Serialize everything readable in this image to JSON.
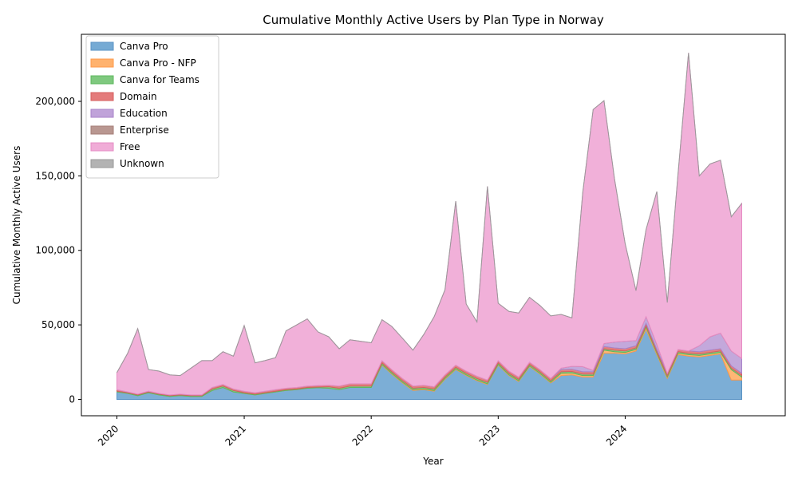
{
  "chart_data": {
    "type": "area",
    "stacked": true,
    "title": "Cumulative Monthly Active Users by Plan Type in Norway",
    "xlabel": "Year",
    "ylabel": "Cumulative Monthly Active Users",
    "x_ticks": [
      "2020",
      "2021",
      "2022",
      "2023",
      "2024"
    ],
    "y_ticks": [
      "0",
      "50,000",
      "100,000",
      "150,000",
      "200,000"
    ],
    "y_tick_values": [
      0,
      50000,
      100000,
      150000,
      200000
    ],
    "ylim": [
      -11000,
      245000
    ],
    "x_range": [
      "2019-09-21",
      "2025-04-05"
    ],
    "legend_position": "top-left",
    "grid": false,
    "x": [
      "2020-01",
      "2020-02",
      "2020-03",
      "2020-04",
      "2020-05",
      "2020-06",
      "2020-07",
      "2020-08",
      "2020-09",
      "2020-10",
      "2020-11",
      "2020-12",
      "2021-01",
      "2021-02",
      "2021-03",
      "2021-04",
      "2021-05",
      "2021-06",
      "2021-07",
      "2021-08",
      "2021-09",
      "2021-10",
      "2021-11",
      "2021-12",
      "2022-01",
      "2022-02",
      "2022-03",
      "2022-04",
      "2022-05",
      "2022-06",
      "2022-07",
      "2022-08",
      "2022-09",
      "2022-10",
      "2022-11",
      "2022-12",
      "2023-01",
      "2023-02",
      "2023-03",
      "2023-04",
      "2023-05",
      "2023-06",
      "2023-07",
      "2023-08",
      "2023-09",
      "2023-10",
      "2023-11",
      "2023-12",
      "2024-01",
      "2024-02",
      "2024-03",
      "2024-04",
      "2024-05",
      "2024-06",
      "2024-07",
      "2024-08",
      "2024-09",
      "2024-10",
      "2024-11",
      "2024-12"
    ],
    "series": [
      {
        "name": "Canva Pro",
        "color": "#75aad4",
        "edge": "#5a93c4",
        "values": [
          5000,
          4000,
          2500,
          4500,
          3000,
          2000,
          2500,
          2000,
          2000,
          6000,
          8000,
          5000,
          4000,
          3000,
          4000,
          5000,
          6000,
          6500,
          7500,
          7800,
          7500,
          6500,
          8000,
          8000,
          8000,
          23000,
          17000,
          11000,
          6000,
          6500,
          5500,
          13500,
          20000,
          16000,
          12500,
          10000,
          23000,
          16000,
          12000,
          22000,
          17000,
          11000,
          16000,
          16500,
          15000,
          15000,
          31000,
          31000,
          30500,
          32500,
          47000,
          30000,
          14000,
          30000,
          29000,
          28500,
          29500,
          30500,
          13000,
          13000
        ]
      },
      {
        "name": "Canva Pro - NFP",
        "color": "#ffb26e",
        "edge": "#ff9a4a",
        "values": [
          0,
          0,
          0,
          0,
          0,
          0,
          0,
          0,
          0,
          0,
          0,
          0,
          0,
          0,
          0,
          0,
          0,
          0,
          0,
          0,
          0,
          0,
          0,
          0,
          0,
          500,
          500,
          500,
          500,
          500,
          500,
          500,
          500,
          500,
          500,
          500,
          500,
          500,
          500,
          500,
          500,
          500,
          1500,
          1200,
          1000,
          1000,
          2000,
          1000,
          1000,
          1000,
          1500,
          1000,
          1000,
          1000,
          1000,
          1000,
          1000,
          1000,
          7000,
          2000
        ]
      },
      {
        "name": "Canva for Teams",
        "color": "#7fc97f",
        "edge": "#5cb85c",
        "values": [
          500,
          500,
          500,
          500,
          500,
          500,
          500,
          500,
          500,
          1000,
          1000,
          1000,
          500,
          500,
          500,
          500,
          500,
          500,
          500,
          500,
          1000,
          1000,
          1000,
          1000,
          1000,
          1000,
          1000,
          1000,
          1000,
          1000,
          1000,
          1000,
          1000,
          1000,
          1000,
          1000,
          1000,
          1000,
          1000,
          1000,
          1000,
          1000,
          1000,
          1000,
          1000,
          1000,
          1000,
          1000,
          1000,
          1000,
          1000,
          1000,
          1000,
          1000,
          1000,
          1000,
          1000,
          1000,
          1000,
          1000
        ]
      },
      {
        "name": "Domain",
        "color": "#e47b7b",
        "edge": "#d65f5f",
        "values": [
          1000,
          500,
          500,
          500,
          500,
          500,
          500,
          500,
          500,
          1000,
          1000,
          1000,
          1000,
          1000,
          1000,
          1000,
          1000,
          1000,
          1000,
          1000,
          1000,
          1500,
          1500,
          1500,
          1500,
          1500,
          1500,
          1500,
          1500,
          1500,
          1500,
          1500,
          1500,
          1500,
          1500,
          1500,
          1500,
          1500,
          1500,
          1500,
          1500,
          1500,
          1500,
          1500,
          1500,
          1500,
          1500,
          1500,
          1500,
          1500,
          1500,
          1500,
          1500,
          1500,
          1500,
          1500,
          1500,
          1500,
          1500,
          1500
        ]
      },
      {
        "name": "Education",
        "color": "#c0a3d9",
        "edge": "#a983c9",
        "values": [
          0,
          0,
          0,
          0,
          0,
          0,
          0,
          0,
          0,
          0,
          0,
          0,
          0,
          0,
          0,
          0,
          0,
          0,
          0,
          0,
          0,
          0,
          0,
          0,
          0,
          0,
          0,
          0,
          0,
          0,
          0,
          0,
          0,
          0,
          0,
          0,
          0,
          0,
          0,
          0,
          0,
          0,
          1000,
          2000,
          3500,
          1000,
          2000,
          4000,
          5000,
          3500,
          4500,
          3500,
          0,
          0,
          0,
          4000,
          9000,
          10500,
          10000,
          10000
        ]
      },
      {
        "name": "Enterprise",
        "color": "#b99791",
        "edge": "#a57d77",
        "values": [
          0,
          0,
          0,
          0,
          0,
          0,
          0,
          0,
          0,
          0,
          0,
          0,
          0,
          0,
          0,
          0,
          0,
          0,
          0,
          0,
          0,
          0,
          0,
          0,
          0,
          0,
          0,
          0,
          0,
          0,
          0,
          0,
          0,
          0,
          0,
          0,
          0,
          0,
          0,
          0,
          0,
          0,
          0,
          0,
          0,
          0,
          0,
          0,
          0,
          0,
          0,
          0,
          0,
          0,
          0,
          0,
          0,
          0,
          0,
          0
        ]
      },
      {
        "name": "Free",
        "color": "#f0acd7",
        "edge": "#e68cc4",
        "values": [
          11500,
          26000,
          44000,
          14500,
          15000,
          13500,
          12500,
          18000,
          23000,
          18000,
          22000,
          22000,
          44000,
          20000,
          20500,
          21500,
          38500,
          42000,
          45000,
          36000,
          32500,
          25000,
          29500,
          28500,
          27500,
          27500,
          29000,
          27000,
          24000,
          34000,
          47000,
          57000,
          110000,
          45000,
          36500,
          130000,
          38500,
          40000,
          43000,
          43500,
          43000,
          42000,
          36000,
          32500,
          117000,
          175000,
          163000,
          110000,
          65500,
          33500,
          58500,
          102500,
          47500,
          118000,
          200000,
          114000,
          116000,
          116000,
          90000,
          104000
        ]
      },
      {
        "name": "Unknown",
        "color": "#b3b3b3",
        "edge": "#999999",
        "values": [
          0,
          0,
          0,
          0,
          0,
          0,
          0,
          0,
          0,
          0,
          0,
          0,
          0,
          0,
          0,
          0,
          0,
          0,
          0,
          0,
          0,
          0,
          0,
          0,
          0,
          0,
          0,
          0,
          0,
          0,
          0,
          0,
          0,
          0,
          0,
          0,
          0,
          0,
          0,
          0,
          0,
          0,
          0,
          0,
          0,
          0,
          0,
          0,
          0,
          0,
          0,
          0,
          0,
          0,
          0,
          0,
          0,
          0,
          0,
          0
        ]
      }
    ]
  }
}
